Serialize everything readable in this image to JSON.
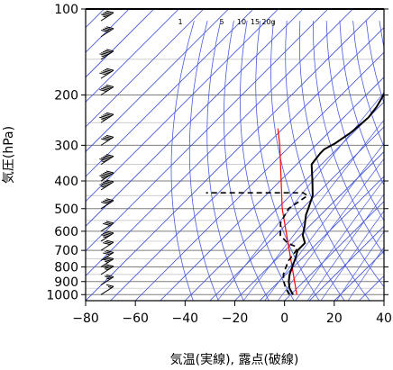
{
  "chart_data": {
    "type": "line",
    "chart_kind": "skew-T log-P thermodynamic diagram",
    "xlabel": "気温(実線), 露点(破線)",
    "ylabel": "気圧(hPa)",
    "xlim": [
      -80,
      40
    ],
    "ylim": [
      1050,
      100
    ],
    "y_scale": "log",
    "x_ticks": [
      -80,
      -60,
      -40,
      -20,
      0,
      20,
      40
    ],
    "x_tick_labels": [
      "−80",
      "−60",
      "−40",
      "−20",
      "0",
      "20",
      "40"
    ],
    "y_ticks": [
      100,
      200,
      300,
      400,
      500,
      600,
      700,
      800,
      900,
      1000
    ],
    "y_tick_labels": [
      "100",
      "200",
      "300",
      "400",
      "500",
      "600",
      "700",
      "800",
      "900",
      "1000"
    ],
    "mixing_ratio_labels": [
      "1",
      "5",
      "10",
      "15",
      "20g"
    ],
    "series": [
      {
        "style": "solid",
        "color": "#000000",
        "points": [
          {
            "p": 1000,
            "t": 1.0
          },
          {
            "p": 950,
            "t": -3.0
          },
          {
            "p": 900,
            "t": -6.0
          },
          {
            "p": 850,
            "t": -8.5
          },
          {
            "p": 800,
            "t": -10.5
          },
          {
            "p": 750,
            "t": -12.5
          },
          {
            "p": 700,
            "t": -15.0
          },
          {
            "p": 660,
            "t": -15.0
          },
          {
            "p": 620,
            "t": -19.0
          },
          {
            "p": 575,
            "t": -22.0
          },
          {
            "p": 525,
            "t": -26.0
          },
          {
            "p": 500,
            "t": -27.5
          },
          {
            "p": 450,
            "t": -31.0
          },
          {
            "p": 400,
            "t": -37.0
          },
          {
            "p": 350,
            "t": -44.0
          },
          {
            "p": 320,
            "t": -45.0
          },
          {
            "p": 310,
            "t": -45.0
          },
          {
            "p": 295,
            "t": -43.0
          },
          {
            "p": 270,
            "t": -41.0
          },
          {
            "p": 240,
            "t": -40.0
          },
          {
            "p": 220,
            "t": -41.0
          },
          {
            "p": 200,
            "t": -43.0
          },
          {
            "p": 170,
            "t": -48.0
          },
          {
            "p": 150,
            "t": -51.0
          },
          {
            "p": 130,
            "t": -53.0
          },
          {
            "p": 115,
            "t": -56.0
          },
          {
            "p": 100,
            "t": -56.5
          }
        ]
      },
      {
        "style": "dashed",
        "color": "#000000",
        "points": [
          {
            "p": 1000,
            "t": -0.5
          },
          {
            "p": 950,
            "t": -4.5
          },
          {
            "p": 900,
            "t": -8.0
          },
          {
            "p": 850,
            "t": -11.0
          },
          {
            "p": 800,
            "t": -13.0
          },
          {
            "p": 760,
            "t": -14.5
          },
          {
            "p": 700,
            "t": -15.5
          },
          {
            "p": 680,
            "t": -17.0
          },
          {
            "p": 660,
            "t": -22.0
          },
          {
            "p": 620,
            "t": -28.0
          },
          {
            "p": 560,
            "t": -33.0
          },
          {
            "p": 500,
            "t": -35.5
          },
          {
            "p": 450,
            "t": -33.0
          },
          {
            "p": 440,
            "t": -36.0
          },
          {
            "p": 440,
            "t": -55.0
          },
          {
            "p": 440,
            "t": -75.0
          }
        ]
      }
    ],
    "reference_line": {
      "color": "#ff0000",
      "points": [
        {
          "p": 1000,
          "t": 2.5
        },
        {
          "p": 500,
          "t": -38.0
        },
        {
          "p": 300,
          "t": -64.5
        },
        {
          "p": 262,
          "t": -72.0
        }
      ]
    },
    "wind_barbs": [
      {
        "p": 1000,
        "speed_kt": 5
      },
      {
        "p": 925,
        "speed_kt": 15
      },
      {
        "p": 850,
        "speed_kt": 25
      },
      {
        "p": 800,
        "speed_kt": 25
      },
      {
        "p": 760,
        "speed_kt": 30
      },
      {
        "p": 700,
        "speed_kt": 30
      },
      {
        "p": 650,
        "speed_kt": 35
      },
      {
        "p": 600,
        "speed_kt": 30
      },
      {
        "p": 500,
        "speed_kt": 40
      },
      {
        "p": 430,
        "speed_kt": 45
      },
      {
        "p": 400,
        "speed_kt": 45
      },
      {
        "p": 350,
        "speed_kt": 45
      },
      {
        "p": 300,
        "speed_kt": 40
      },
      {
        "p": 250,
        "speed_kt": 45
      },
      {
        "p": 200,
        "speed_kt": 50
      },
      {
        "p": 175,
        "speed_kt": 50
      },
      {
        "p": 150,
        "speed_kt": 45
      },
      {
        "p": 125,
        "speed_kt": 40
      },
      {
        "p": 110,
        "speed_kt": 35
      }
    ]
  }
}
